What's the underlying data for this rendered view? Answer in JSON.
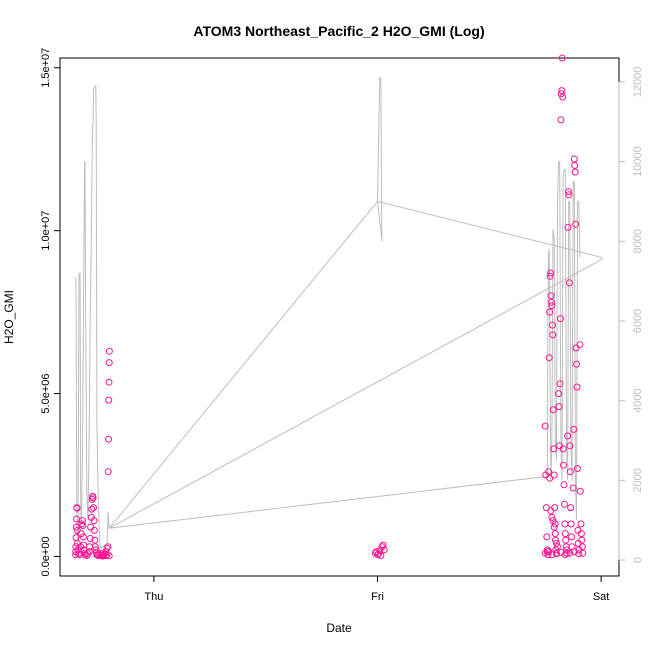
{
  "chart_data": {
    "type": "scatter",
    "title": "ATOM3 Northeast_Pacific_2 H2O_GMI (Log)",
    "xlabel": "Date",
    "ylabel": "H2O_GMI",
    "x_ticks": [
      {
        "label": "Thu",
        "value": 1.0
      },
      {
        "label": "Fri",
        "value": 2.0
      },
      {
        "label": "Sat",
        "value": 3.0
      }
    ],
    "ylim": [
      -600000,
      15300000
    ],
    "y_ticks": [
      0,
      5000000,
      10000000,
      15000000
    ],
    "y_tick_labels": [
      "0.0e+00",
      "5.0e+06",
      "1.0e+07",
      "1.5e+07"
    ],
    "y2lim": [
      -400,
      12600
    ],
    "y2_ticks": [
      0,
      2000,
      4000,
      6000,
      8000,
      10000,
      12000
    ],
    "y2_tick_labels": [
      "0",
      "2000",
      "4000",
      "6000",
      "8000",
      "10000",
      "12000"
    ],
    "colors": {
      "points": "#ff1493",
      "line": "#bdbdbd",
      "axis": "#000000",
      "axis2": "#bdbdbd"
    },
    "series": [
      {
        "kind": "points",
        "axis": "left",
        "points": [
          [
            0.65,
            50000
          ],
          [
            0.65,
            150000
          ],
          [
            0.651,
            300000
          ],
          [
            0.652,
            580000
          ],
          [
            0.653,
            900000
          ],
          [
            0.654,
            1150000
          ],
          [
            0.655,
            1500000
          ],
          [
            0.656,
            1480000
          ],
          [
            0.657,
            800000
          ],
          [
            0.658,
            400000
          ],
          [
            0.66,
            200000
          ],
          [
            0.662,
            80000
          ],
          [
            0.67,
            60000
          ],
          [
            0.672,
            300000
          ],
          [
            0.675,
            700000
          ],
          [
            0.677,
            1000000
          ],
          [
            0.68,
            1100000
          ],
          [
            0.682,
            950000
          ],
          [
            0.684,
            600000
          ],
          [
            0.686,
            350000
          ],
          [
            0.688,
            200000
          ],
          [
            0.69,
            100000
          ],
          [
            0.692,
            50000
          ],
          [
            0.7,
            30000
          ],
          [
            0.705,
            80000
          ],
          [
            0.71,
            150000
          ],
          [
            0.712,
            300000
          ],
          [
            0.715,
            550000
          ],
          [
            0.717,
            900000
          ],
          [
            0.72,
            1200000
          ],
          [
            0.722,
            1450000
          ],
          [
            0.724,
            1750000
          ],
          [
            0.726,
            1850000
          ],
          [
            0.728,
            1800000
          ],
          [
            0.73,
            1500000
          ],
          [
            0.732,
            1100000
          ],
          [
            0.734,
            800000
          ],
          [
            0.736,
            500000
          ],
          [
            0.738,
            300000
          ],
          [
            0.74,
            200000
          ],
          [
            0.742,
            100000
          ],
          [
            0.745,
            50000
          ],
          [
            0.75,
            30000
          ],
          [
            0.755,
            60000
          ],
          [
            0.76,
            100000
          ],
          [
            0.765,
            20000
          ],
          [
            0.77,
            10000
          ],
          [
            0.775,
            30000
          ],
          [
            0.78,
            80000
          ],
          [
            0.785,
            150000
          ],
          [
            0.79,
            250000
          ],
          [
            0.795,
            300000
          ],
          [
            0.796,
            2600000
          ],
          [
            0.797,
            3600000
          ],
          [
            0.798,
            4800000
          ],
          [
            0.799,
            5350000
          ],
          [
            0.8,
            5950000
          ],
          [
            0.801,
            6300000
          ],
          [
            0.8,
            20000
          ],
          [
            0.79,
            50000
          ],
          [
            0.785,
            20000
          ],
          [
            0.775,
            60000
          ],
          [
            0.765,
            40000
          ],
          [
            1.99,
            100000
          ],
          [
            1.995,
            150000
          ],
          [
            2.0,
            50000
          ],
          [
            2.005,
            80000
          ],
          [
            2.01,
            180000
          ],
          [
            2.015,
            30000
          ],
          [
            2.02,
            300000
          ],
          [
            2.025,
            350000
          ],
          [
            2.03,
            200000
          ],
          [
            2.75,
            4000000
          ],
          [
            2.752,
            2500000
          ],
          [
            2.755,
            1500000
          ],
          [
            2.757,
            600000
          ],
          [
            2.76,
            200000
          ],
          [
            2.762,
            50000
          ],
          [
            2.765,
            150000
          ],
          [
            2.768,
            6100000
          ],
          [
            2.77,
            7500000
          ],
          [
            2.772,
            8600000
          ],
          [
            2.774,
            8700000
          ],
          [
            2.776,
            8000000
          ],
          [
            2.778,
            7800000
          ],
          [
            2.78,
            7700000
          ],
          [
            2.782,
            7100000
          ],
          [
            2.784,
            6800000
          ],
          [
            2.786,
            4500000
          ],
          [
            2.788,
            3300000
          ],
          [
            2.79,
            2500000
          ],
          [
            2.792,
            1500000
          ],
          [
            2.794,
            1000000
          ],
          [
            2.796,
            500000
          ],
          [
            2.798,
            200000
          ],
          [
            2.8,
            100000
          ],
          [
            2.765,
            2600000
          ],
          [
            2.77,
            2400000
          ],
          [
            2.775,
            1400000
          ],
          [
            2.78,
            1200000
          ],
          [
            2.785,
            1100000
          ],
          [
            2.79,
            900000
          ],
          [
            2.795,
            700000
          ],
          [
            2.8,
            400000
          ],
          [
            2.805,
            300000
          ],
          [
            2.81,
            5000000
          ],
          [
            2.812,
            4600000
          ],
          [
            2.814,
            3400000
          ],
          [
            2.816,
            5300000
          ],
          [
            2.818,
            7300000
          ],
          [
            2.82,
            13400000
          ],
          [
            2.822,
            14200000
          ],
          [
            2.824,
            14300000
          ],
          [
            2.826,
            15300000
          ],
          [
            2.828,
            14100000
          ],
          [
            2.83,
            3300000
          ],
          [
            2.832,
            2800000
          ],
          [
            2.834,
            2200000
          ],
          [
            2.836,
            1600000
          ],
          [
            2.838,
            1000000
          ],
          [
            2.84,
            700000
          ],
          [
            2.842,
            500000
          ],
          [
            2.844,
            300000
          ],
          [
            2.846,
            200000
          ],
          [
            2.848,
            100000
          ],
          [
            2.85,
            3700000
          ],
          [
            2.852,
            10100000
          ],
          [
            2.854,
            11200000
          ],
          [
            2.856,
            11100000
          ],
          [
            2.858,
            8400000
          ],
          [
            2.86,
            3400000
          ],
          [
            2.862,
            2600000
          ],
          [
            2.864,
            1500000
          ],
          [
            2.866,
            1000000
          ],
          [
            2.868,
            600000
          ],
          [
            2.87,
            300000
          ],
          [
            2.875,
            2100000
          ],
          [
            2.878,
            3900000
          ],
          [
            2.88,
            12200000
          ],
          [
            2.882,
            12000000
          ],
          [
            2.884,
            11800000
          ],
          [
            2.886,
            10200000
          ],
          [
            2.888,
            6400000
          ],
          [
            2.89,
            5900000
          ],
          [
            2.892,
            5200000
          ],
          [
            2.894,
            2700000
          ],
          [
            2.896,
            800000
          ],
          [
            2.898,
            400000
          ],
          [
            2.9,
            200000
          ],
          [
            2.905,
            6500000
          ],
          [
            2.907,
            2000000
          ],
          [
            2.91,
            1000000
          ],
          [
            2.912,
            700000
          ],
          [
            2.914,
            500000
          ],
          [
            2.916,
            300000
          ],
          [
            2.918,
            100000
          ],
          [
            2.75,
            100000
          ],
          [
            2.76,
            150000
          ],
          [
            2.78,
            50000
          ],
          [
            2.8,
            80000
          ],
          [
            2.82,
            120000
          ],
          [
            2.84,
            60000
          ],
          [
            2.86,
            100000
          ],
          [
            2.88,
            150000
          ],
          [
            2.9,
            80000
          ]
        ]
      },
      {
        "kind": "line",
        "axis": "right",
        "points": [
          [
            0.65,
            7100
          ],
          [
            0.652,
            6600
          ],
          [
            0.655,
            900
          ],
          [
            0.658,
            500
          ],
          [
            0.66,
            200
          ],
          [
            0.665,
            7200
          ],
          [
            0.67,
            7200
          ],
          [
            0.672,
            1800
          ],
          [
            0.675,
            800
          ],
          [
            0.68,
            2500
          ],
          [
            0.685,
            6200
          ],
          [
            0.69,
            10000
          ],
          [
            0.692,
            10000
          ],
          [
            0.695,
            6000
          ],
          [
            0.7,
            1700
          ],
          [
            0.705,
            1000
          ],
          [
            0.71,
            3000
          ],
          [
            0.715,
            6000
          ],
          [
            0.72,
            8000
          ],
          [
            0.725,
            10700
          ],
          [
            0.728,
            11000
          ],
          [
            0.73,
            11800
          ],
          [
            0.735,
            11900
          ],
          [
            0.74,
            11900
          ],
          [
            0.742,
            11000
          ],
          [
            0.745,
            3500
          ],
          [
            0.75,
            1800
          ],
          [
            0.755,
            800
          ],
          [
            0.76,
            300
          ],
          [
            0.79,
            400
          ],
          [
            0.795,
            1200
          ],
          [
            0.8,
            800
          ],
          [
            2.0,
            9000
          ],
          [
            2.01,
            12100
          ],
          [
            2.015,
            12100
          ],
          [
            2.018,
            9000
          ],
          [
            2.02,
            8000
          ],
          [
            2.0,
            9000
          ],
          [
            3.0,
            7600
          ],
          [
            3.005,
            7550
          ],
          [
            0.8,
            800
          ],
          [
            2.76,
            2100
          ],
          [
            2.762,
            6200
          ],
          [
            2.765,
            7700
          ],
          [
            2.768,
            7800
          ],
          [
            2.77,
            6000
          ],
          [
            2.775,
            2000
          ],
          [
            2.78,
            3000
          ],
          [
            2.785,
            8300
          ],
          [
            2.79,
            8100
          ],
          [
            2.795,
            3000
          ],
          [
            2.8,
            2500
          ],
          [
            2.805,
            9000
          ],
          [
            2.81,
            10000
          ],
          [
            2.815,
            10000
          ],
          [
            2.82,
            3000
          ],
          [
            2.825,
            2000
          ],
          [
            2.83,
            9600
          ],
          [
            2.835,
            9800
          ],
          [
            2.84,
            9800
          ],
          [
            2.845,
            3000
          ],
          [
            2.85,
            2000
          ],
          [
            2.855,
            9000
          ],
          [
            2.86,
            9000
          ],
          [
            2.865,
            3000
          ],
          [
            2.87,
            2000
          ],
          [
            2.875,
            9500
          ],
          [
            2.88,
            9500
          ],
          [
            2.885,
            2000
          ],
          [
            2.89,
            1000
          ],
          [
            2.895,
            9000
          ],
          [
            2.9,
            9000
          ],
          [
            2.905,
            7600
          ]
        ]
      }
    ]
  }
}
